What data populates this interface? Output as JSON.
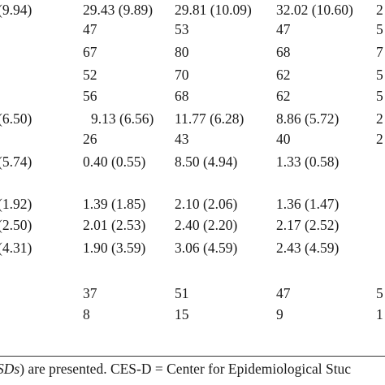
{
  "rows": [
    [
      "(9.94)",
      "29.43 (9.89)",
      "29.81 (10.09)",
      "32.02 (10.60)",
      "2"
    ],
    [
      "",
      "47",
      "53",
      "47",
      "5"
    ],
    [
      "",
      "67",
      "80",
      "68",
      "7"
    ],
    [
      "",
      "52",
      "70",
      "62",
      "5"
    ],
    [
      "",
      "56",
      "68",
      "62",
      "5"
    ],
    [
      "(6.50)",
      "9.13 (6.56)",
      "11.77 (6.28)",
      "8.86 (5.72)",
      "2"
    ],
    [
      "",
      "26",
      "43",
      "40",
      "2"
    ],
    [
      "(5.74)",
      "0.40 (0.55)",
      "8.50 (4.94)",
      "1.33 (0.58)",
      ""
    ],
    [
      "",
      "",
      "",
      "",
      ""
    ],
    [
      "(1.92)",
      "1.39 (1.85)",
      "2.10 (2.06)",
      "1.36 (1.47)",
      ""
    ],
    [
      "(2.50)",
      "2.01 (2.53)",
      "2.40 (2.20)",
      "2.17 (2.52)",
      ""
    ],
    [
      "(4.31)",
      "1.90 (3.59)",
      "3.06 (4.59)",
      "2.43 (4.59)",
      ""
    ],
    [
      "",
      "",
      "",
      "",
      ""
    ],
    [
      "",
      "37",
      "51",
      "47",
      "5"
    ],
    [
      "",
      "8",
      "15",
      "9",
      "1"
    ]
  ],
  "note": {
    "italic_part": "SDs",
    "rest": ") are presented. CES-D = Center for Epidemiological Stuc"
  }
}
